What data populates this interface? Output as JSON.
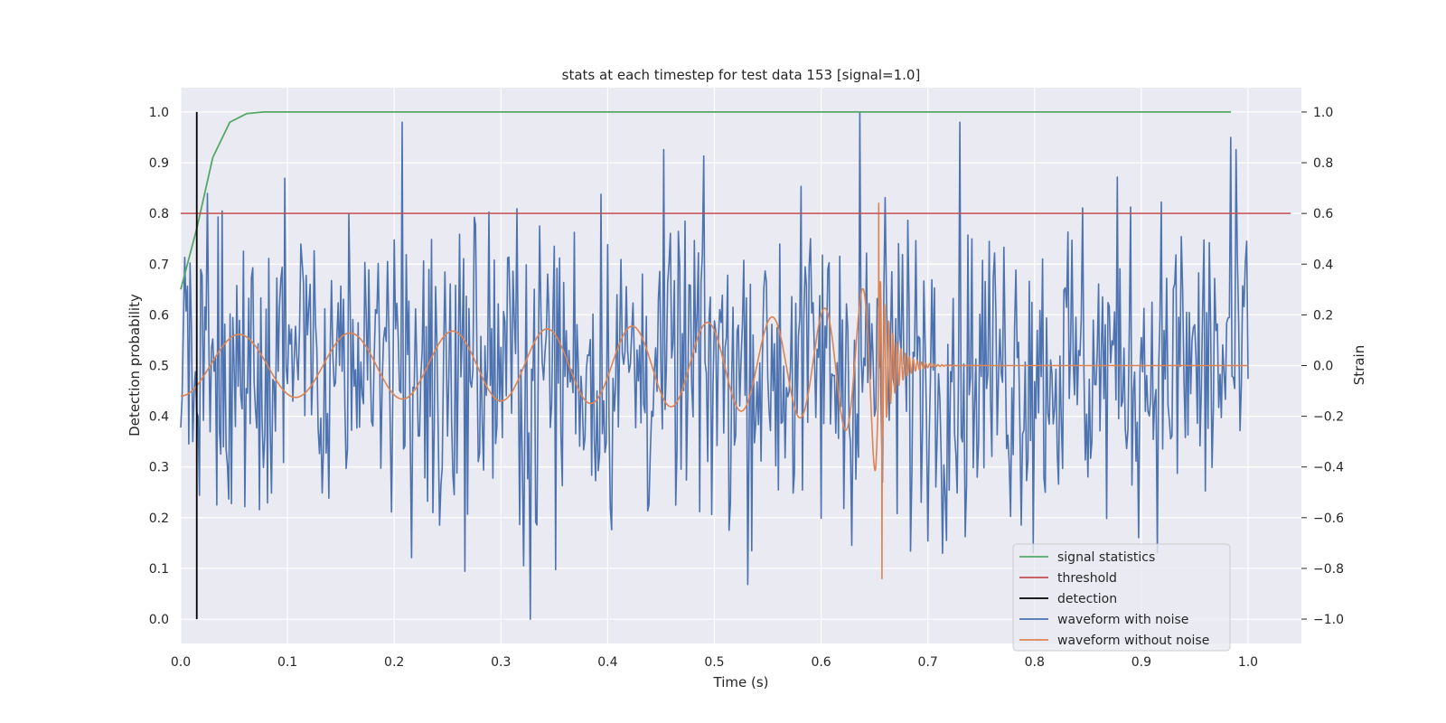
{
  "chart_data": {
    "type": "line",
    "title": "stats at each timestep for test data 153 [signal=1.0]",
    "xlabel": "Time (s)",
    "ylabel": "Detection probability",
    "ylabel_right": "Strain",
    "xlim": [
      0.0,
      1.05
    ],
    "ylim": [
      -0.048,
      1.048
    ],
    "ylim_right": [
      -1.096,
      1.096
    ],
    "x_ticks": [
      "0.0",
      "0.1",
      "0.2",
      "0.3",
      "0.4",
      "0.5",
      "0.6",
      "0.7",
      "0.8",
      "0.9",
      "1.0"
    ],
    "x_tick_values": [
      0.0,
      0.1,
      0.2,
      0.3,
      0.4,
      0.5,
      0.6,
      0.7,
      0.8,
      0.9,
      1.0
    ],
    "y_ticks": [
      "0.0",
      "0.1",
      "0.2",
      "0.3",
      "0.4",
      "0.5",
      "0.6",
      "0.7",
      "0.8",
      "0.9",
      "1.0"
    ],
    "y_tick_values": [
      0.0,
      0.1,
      0.2,
      0.3,
      0.4,
      0.5,
      0.6,
      0.7,
      0.8,
      0.9,
      1.0
    ],
    "y_right_ticks": [
      "−1.0",
      "−0.8",
      "−0.6",
      "−0.4",
      "−0.2",
      "0.0",
      "0.2",
      "0.4",
      "0.6",
      "0.8",
      "1.0"
    ],
    "y_right_tick_values": [
      -1.0,
      -0.8,
      -0.6,
      -0.4,
      -0.2,
      0.0,
      0.2,
      0.4,
      0.6,
      0.8,
      1.0
    ],
    "grid": true,
    "legend_position": "lower-right",
    "colors": {
      "background": "#eaeaf2",
      "grid": "#ffffff",
      "signal": "#55a868",
      "threshold": "#c44e52",
      "detection": "#000000",
      "noisy": "#4c72b0",
      "clean": "#dd8452"
    },
    "series": [
      {
        "name": "signal statistics",
        "axis": "left",
        "x": [
          0.0,
          0.015,
          0.03,
          0.046,
          0.062,
          0.078,
          0.2,
          0.4,
          0.6,
          0.8,
          0.984
        ],
        "y": [
          0.65,
          0.77,
          0.91,
          0.98,
          0.997,
          1.0,
          1.0,
          1.0,
          1.0,
          1.0,
          1.0
        ]
      },
      {
        "name": "threshold",
        "axis": "left",
        "x": [
          0.0,
          1.04
        ],
        "y": [
          0.8,
          0.8
        ]
      },
      {
        "name": "detection",
        "axis": "left",
        "x": [
          0.015,
          0.015
        ],
        "y": [
          0.0,
          1.0
        ]
      },
      {
        "name": "waveform with noise",
        "axis": "right",
        "x_range": [
          0.0,
          1.0
        ],
        "extremes": [
          {
            "x": 0.327,
            "y": -1.0
          },
          {
            "x": 0.636,
            "y": 1.0
          },
          {
            "x": 0.207,
            "y": 0.96
          },
          {
            "x": 0.73,
            "y": 0.96
          },
          {
            "x": 0.984,
            "y": 0.9
          }
        ]
      },
      {
        "name": "waveform without noise",
        "axis": "right",
        "x_range": [
          0.0,
          1.0
        ],
        "peak": {
          "x": 0.654,
          "y": 0.64
        },
        "trough": {
          "x": 0.657,
          "y": -0.84
        },
        "merger_time": 0.655
      }
    ]
  }
}
